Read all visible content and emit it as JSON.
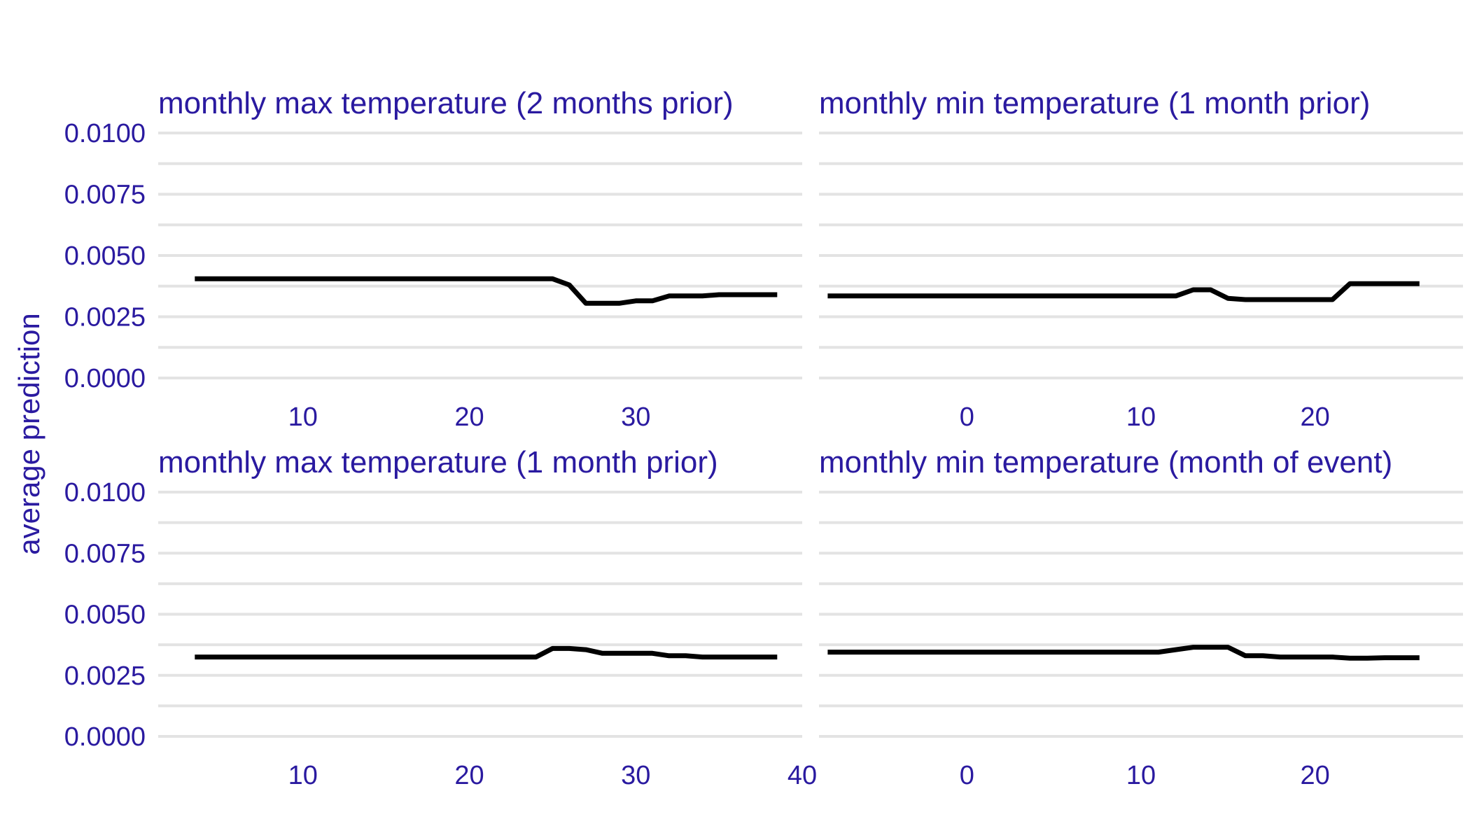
{
  "colors": {
    "text": "#2a1aa0",
    "grid": "#e3e3e3",
    "line": "#000000",
    "background": "#ffffff"
  },
  "chart_data": {
    "type": "line",
    "layout": "facet-grid 2x2",
    "ylabel": "average prediction",
    "ylim": [
      0,
      0.01
    ],
    "yticks": [
      "0.0000",
      "0.0025",
      "0.0050",
      "0.0075",
      "0.0100"
    ],
    "grid": true,
    "legend": "none",
    "panels": [
      {
        "title": "monthly max temperature (2 months prior)",
        "xlim": [
          1.3,
          40
        ],
        "xticks": [
          10,
          20,
          30
        ],
        "show_tick_labels": [
          "10",
          "20",
          "30"
        ],
        "x": [
          3.5,
          6,
          8,
          10,
          12,
          14,
          16,
          18,
          20,
          22,
          24,
          25,
          26,
          27,
          28,
          29,
          30,
          31,
          32,
          33,
          34,
          35,
          36,
          37,
          38.5
        ],
        "y": [
          0.00405,
          0.00405,
          0.00405,
          0.00405,
          0.00405,
          0.00405,
          0.00405,
          0.00405,
          0.00405,
          0.00405,
          0.00405,
          0.00405,
          0.0038,
          0.00305,
          0.00305,
          0.00305,
          0.00315,
          0.00315,
          0.00335,
          0.00335,
          0.00335,
          0.0034,
          0.0034,
          0.0034,
          0.0034
        ]
      },
      {
        "title": "monthly min temperature (1 month prior)",
        "xlim": [
          -8.5,
          28.5
        ],
        "xticks": [
          0,
          10,
          20
        ],
        "show_tick_labels": [
          "0",
          "10",
          "20"
        ],
        "x": [
          -8,
          -5,
          0,
          5,
          10,
          12,
          13,
          14,
          15,
          16,
          17,
          18,
          19,
          20,
          21,
          22,
          23,
          24,
          25,
          26
        ],
        "y": [
          0.00335,
          0.00335,
          0.00335,
          0.00335,
          0.00335,
          0.00335,
          0.0036,
          0.0036,
          0.00325,
          0.0032,
          0.0032,
          0.0032,
          0.0032,
          0.0032,
          0.0032,
          0.00385,
          0.00385,
          0.00385,
          0.00385,
          0.00385
        ]
      },
      {
        "title": "monthly max temperature (1 month prior)",
        "xlim": [
          1.3,
          40
        ],
        "xticks": [
          10,
          20,
          30,
          40
        ],
        "show_tick_labels": [
          "10",
          "20",
          "30",
          "40"
        ],
        "x": [
          3.5,
          6,
          10,
          14,
          18,
          22,
          24,
          25,
          26,
          27,
          28,
          29,
          30,
          31,
          32,
          33,
          34,
          35,
          36,
          37,
          38.5
        ],
        "y": [
          0.00325,
          0.00325,
          0.00325,
          0.00325,
          0.00325,
          0.00325,
          0.00325,
          0.0036,
          0.0036,
          0.00355,
          0.0034,
          0.0034,
          0.0034,
          0.0034,
          0.0033,
          0.0033,
          0.00325,
          0.00325,
          0.00325,
          0.00325,
          0.00325
        ]
      },
      {
        "title": "monthly min temperature (month of event)",
        "xlim": [
          -8.5,
          28.5
        ],
        "xticks": [
          0,
          10,
          20
        ],
        "show_tick_labels": [
          "0",
          "10",
          "20"
        ],
        "x": [
          -8,
          -5,
          0,
          5,
          10,
          11,
          12,
          13,
          14,
          15,
          16,
          17,
          18,
          19,
          20,
          21,
          22,
          23,
          24,
          25,
          26
        ],
        "y": [
          0.00345,
          0.00345,
          0.00345,
          0.00345,
          0.00345,
          0.00345,
          0.00355,
          0.00365,
          0.00365,
          0.00365,
          0.0033,
          0.0033,
          0.00325,
          0.00325,
          0.00325,
          0.00325,
          0.0032,
          0.0032,
          0.00322,
          0.00322,
          0.00322
        ]
      }
    ]
  }
}
